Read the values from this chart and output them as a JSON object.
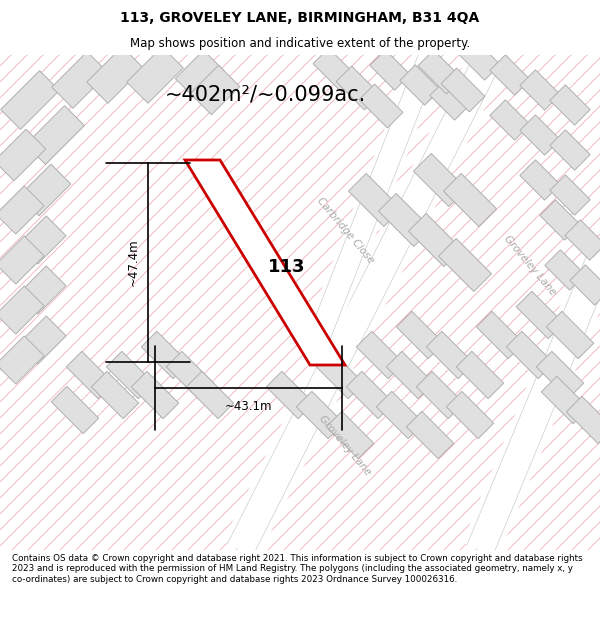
{
  "title_line1": "113, GROVELEY LANE, BIRMINGHAM, B31 4QA",
  "title_line2": "Map shows position and indicative extent of the property.",
  "area_label": "~402m²/~0.099ac.",
  "dim_width": "~43.1m",
  "dim_height": "~47.4m",
  "property_label": "113",
  "footer_text": "Contains OS data © Crown copyright and database right 2021. This information is subject to Crown copyright and database rights 2023 and is reproduced with the permission of HM Land Registry. The polygons (including the associated geometry, namely x, y co-ordinates) are subject to Crown copyright and database rights 2023 Ordnance Survey 100026316.",
  "bg_color": "#f7f7f7",
  "map_bg": "#f7f7f7",
  "hatch_color": "#f0b0b0",
  "building_color": "#e0e0e0",
  "building_edge": "#b0b0b0",
  "property_edge": "#cc0000",
  "road_label_color": "#aaaaaa",
  "street_label1": "Carbridge Close",
  "street_label2": "Groveley Lane",
  "street_label3": "Groveley Lane"
}
